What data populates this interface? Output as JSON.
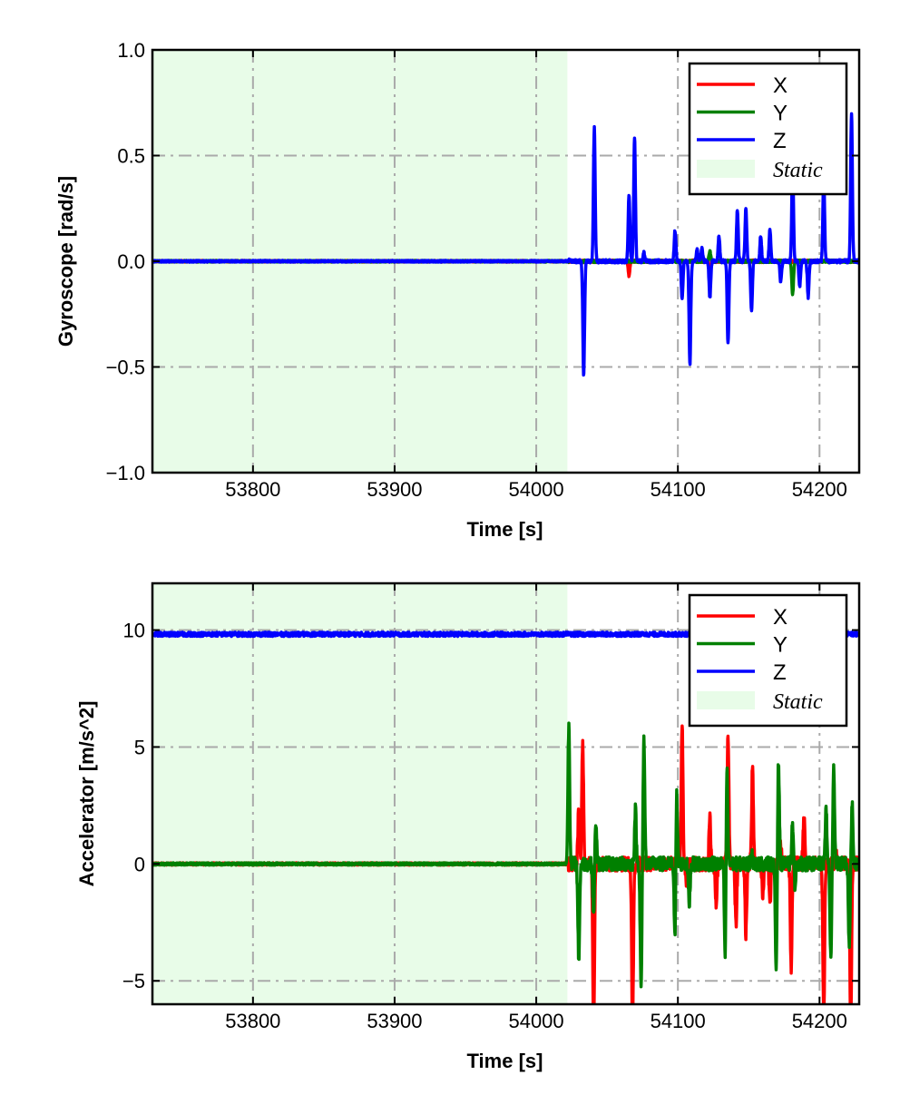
{
  "chart_data": [
    {
      "type": "line",
      "id": "gyro",
      "xlabel": "Time [s]",
      "ylabel": "Gyroscope [rad/s]",
      "xlim": [
        53729,
        54228
      ],
      "ylim": [
        -1.0,
        1.0
      ],
      "xticks": [
        53800,
        53900,
        54000,
        54100,
        54200
      ],
      "xtick_labels": [
        "53800",
        "53900",
        "54000",
        "54100",
        "54200"
      ],
      "yticks": [
        -1.0,
        -0.5,
        0.0,
        0.5,
        1.0
      ],
      "ytick_labels": [
        "−1.0",
        "−0.5",
        "0.0",
        "0.5",
        "1.0"
      ],
      "grid": true,
      "legend_position": "top-right",
      "static_region": [
        53729,
        54022
      ],
      "active_start": 54022,
      "series": [
        {
          "name": "X",
          "color": "#ff0000",
          "baseline": 0,
          "noise": 0.004,
          "active_noise": 0.006,
          "spikes": [
            [
              54065.5,
              -0.07
            ],
            [
              54122.6,
              -0.04
            ]
          ]
        },
        {
          "name": "Y",
          "color": "#008000",
          "baseline": 0,
          "noise": 0.004,
          "active_noise": 0.006,
          "spikes": [
            [
              54122.6,
              0.05
            ],
            [
              54181,
              -0.16
            ]
          ]
        },
        {
          "name": "Z",
          "color": "#0000ff",
          "baseline": 0,
          "noise": 0.004,
          "active_noise": 0.008,
          "spikes": [
            [
              54023,
              0.01
            ],
            [
              54033.5,
              -0.54
            ],
            [
              54041,
              0.635
            ],
            [
              54065.5,
              0.31
            ],
            [
              54069.4,
              0.59
            ],
            [
              54076,
              0.04
            ],
            [
              54098,
              0.146
            ],
            [
              54103,
              -0.17
            ],
            [
              54108.5,
              -0.49
            ],
            [
              54113.6,
              0.06
            ],
            [
              54117,
              0.06
            ],
            [
              54122.6,
              -0.17
            ],
            [
              54129,
              0.12
            ],
            [
              54135.4,
              -0.39
            ],
            [
              54142,
              0.24
            ],
            [
              54148,
              0.25
            ],
            [
              54152,
              -0.23
            ],
            [
              54158.5,
              0.12
            ],
            [
              54165,
              0.15
            ],
            [
              54172.6,
              -0.1
            ],
            [
              54181,
              0.46
            ],
            [
              54186,
              -0.12
            ],
            [
              54192,
              -0.17
            ],
            [
              54203,
              0.4
            ],
            [
              54222.6,
              0.7
            ]
          ]
        }
      ],
      "legend": {
        "entries": [
          "X",
          "Y",
          "Z"
        ],
        "static_label": "Static",
        "static_color": "#e8fce8"
      }
    },
    {
      "type": "line",
      "id": "accel",
      "xlabel": "Time [s]",
      "ylabel": "Accelerator [m/s^2]",
      "xlim": [
        53729,
        54228
      ],
      "ylim": [
        -6,
        12
      ],
      "xticks": [
        53800,
        53900,
        54000,
        54100,
        54200
      ],
      "xtick_labels": [
        "53800",
        "53900",
        "54000",
        "54100",
        "54200"
      ],
      "yticks": [
        -5,
        0,
        5,
        10
      ],
      "ytick_labels": [
        "−5",
        "0",
        "5",
        "10"
      ],
      "grid": true,
      "legend_position": "top-right",
      "static_region": [
        53729,
        54022
      ],
      "active_start": 54022,
      "series": [
        {
          "name": "X",
          "color": "#ff0000",
          "baseline": 0,
          "noise": 0.05,
          "active_noise": 0.3,
          "spikes": [
            [
              54030,
              2.4
            ],
            [
              54032.8,
              5.2
            ],
            [
              54040.5,
              -7
            ],
            [
              54068,
              -7
            ],
            [
              54103,
              5.9
            ],
            [
              54106,
              -0.7
            ],
            [
              54122.6,
              1.9
            ],
            [
              54127,
              -1.7
            ],
            [
              54135.4,
              5.6
            ],
            [
              54141,
              -2.6
            ],
            [
              54148,
              -2.95
            ],
            [
              54152.7,
              4.26
            ],
            [
              54160,
              -1.3
            ],
            [
              54165,
              -1.7
            ],
            [
              54172.6,
              0.8
            ],
            [
              54180,
              -4.46
            ],
            [
              54189,
              2.1
            ],
            [
              54203,
              -6.5
            ],
            [
              54211.7,
              0.5
            ],
            [
              54222,
              -7
            ]
          ]
        },
        {
          "name": "Y",
          "color": "#008000",
          "baseline": 0,
          "noise": 0.05,
          "active_noise": 0.3,
          "spikes": [
            [
              54023,
              5.97
            ],
            [
              54030,
              -4.07
            ],
            [
              54040.5,
              -2.25
            ],
            [
              54042,
              1.94
            ],
            [
              54070,
              2.3
            ],
            [
              54074,
              -5.35
            ],
            [
              54076,
              5.4
            ],
            [
              54098,
              -3.7
            ],
            [
              54099,
              3.6
            ],
            [
              54108,
              -1.7
            ],
            [
              54133.5,
              -4.96
            ],
            [
              54134.5,
              5.0
            ],
            [
              54152,
              0.6
            ],
            [
              54169.4,
              -4.57
            ],
            [
              54171,
              4.5
            ],
            [
              54181,
              1.74
            ],
            [
              54182.5,
              -0.9
            ],
            [
              54204.6,
              2.3
            ],
            [
              54208,
              -4.07
            ],
            [
              54210,
              4.26
            ],
            [
              54221,
              -3.5
            ],
            [
              54223,
              2.5
            ]
          ]
        },
        {
          "name": "Z",
          "color": "#0000ff",
          "baseline": 9.82,
          "noise": 0.09,
          "active_noise": 0.09,
          "spikes": []
        }
      ],
      "legend": {
        "entries": [
          "X",
          "Y",
          "Z"
        ],
        "static_label": "Static",
        "static_color": "#e8fce8"
      }
    }
  ]
}
